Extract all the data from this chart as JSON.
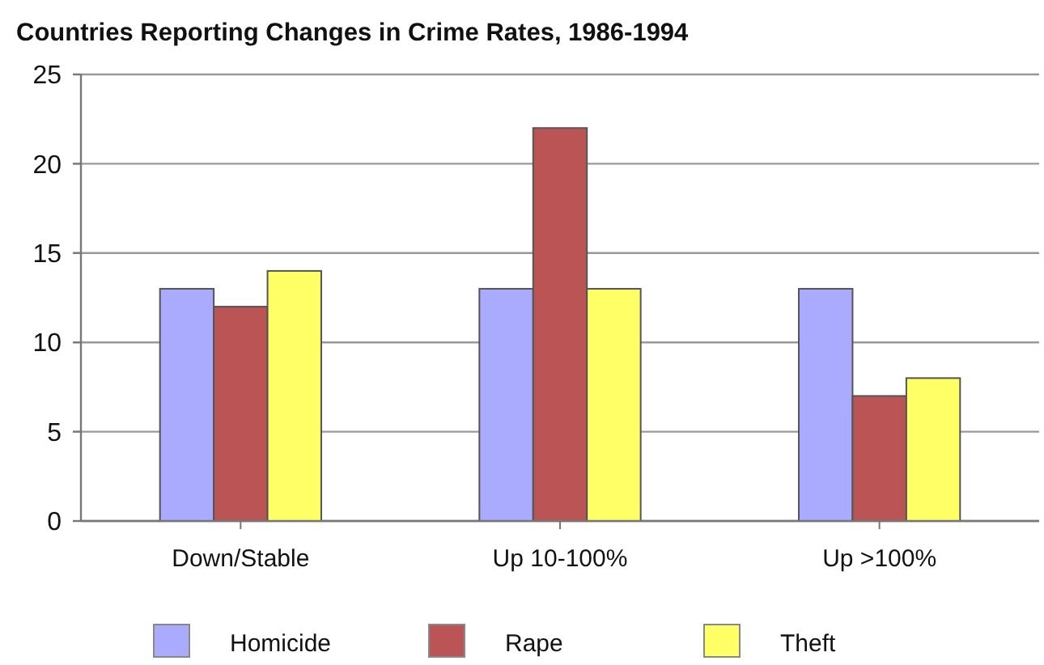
{
  "chart_data": {
    "type": "bar",
    "title": "Countries Reporting Changes in Crime Rates, 1986-1994",
    "categories": [
      "Down/Stable",
      "Up 10-100%",
      "Up >100%"
    ],
    "series": [
      {
        "name": "Homicide",
        "color": "#aaaaff",
        "values": [
          13,
          13,
          13
        ]
      },
      {
        "name": "Rape",
        "color": "#bb5555",
        "values": [
          12,
          22,
          7
        ]
      },
      {
        "name": "Theft",
        "color": "#ffff66",
        "values": [
          14,
          13,
          8
        ]
      }
    ],
    "ylim": [
      0,
      25
    ],
    "yticks": [
      0,
      5,
      10,
      15,
      20,
      25
    ],
    "grid": "y",
    "legend": "bottom"
  }
}
